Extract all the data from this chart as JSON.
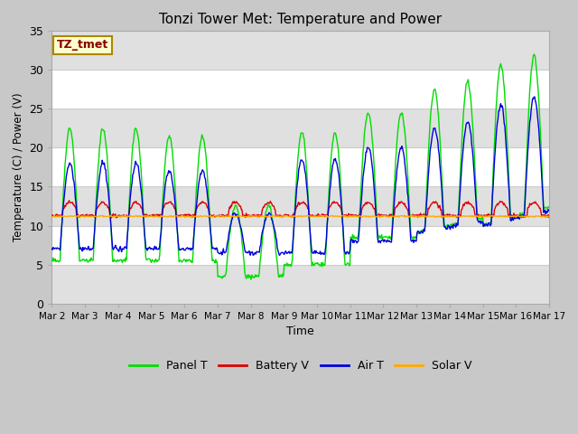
{
  "title": "Tonzi Tower Met: Temperature and Power",
  "xlabel": "Time",
  "ylabel": "Temperature (C) / Power (V)",
  "ylim": [
    0,
    35
  ],
  "annotation_text": "TZ_tmet",
  "annotation_color": "#880000",
  "annotation_bg": "#ffffcc",
  "annotation_border": "#aa8800",
  "legend_labels": [
    "Panel T",
    "Battery V",
    "Air T",
    "Solar V"
  ],
  "legend_colors": [
    "#00dd00",
    "#dd0000",
    "#0000dd",
    "#ffaa00"
  ],
  "fig_bg": "#c8c8c8",
  "plot_bg": "#ffffff",
  "band_color": "#e0e0e0",
  "x_tick_labels": [
    "Mar 2",
    "Mar 3",
    "Mar 4",
    "Mar 5",
    "Mar 6",
    "Mar 7",
    "Mar 8",
    "Mar 9",
    "Mar 10",
    "Mar 11",
    "Mar 12",
    "Mar 13",
    "Mar 14",
    "Mar 15",
    "Mar 16",
    "Mar 17"
  ],
  "n_days": 15,
  "pts_per_day": 48
}
